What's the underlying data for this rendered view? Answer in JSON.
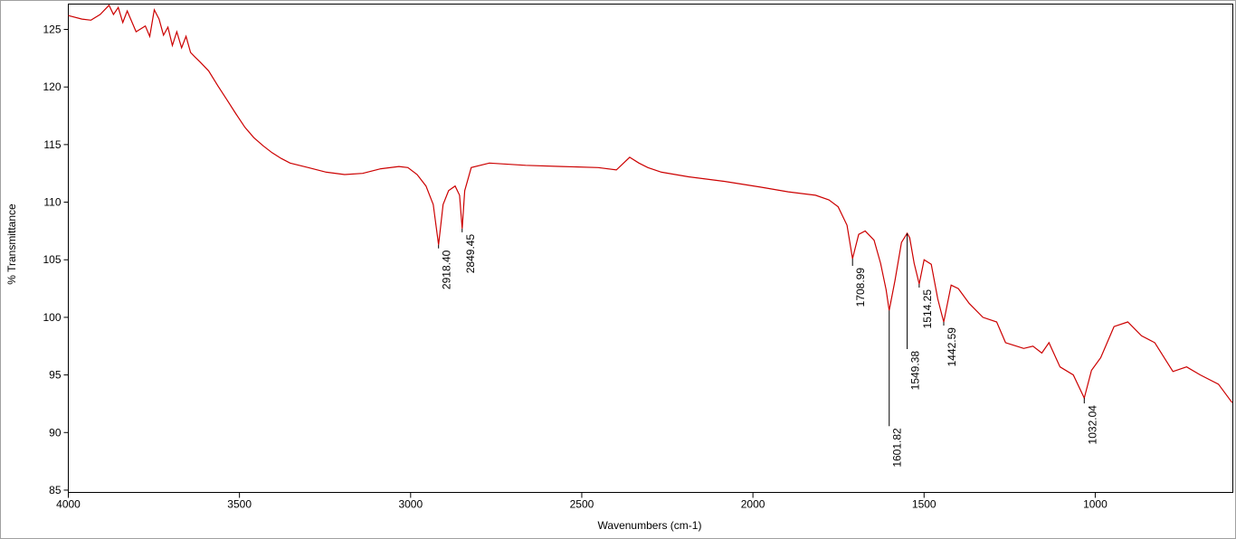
{
  "chart_data": {
    "type": "line",
    "x_label": "Wavenumbers (cm-1)",
    "y_label": "% Transmittance",
    "xlim": [
      4000,
      598
    ],
    "ylim": [
      84.8,
      127.2
    ],
    "xticks": [
      4000,
      3500,
      3000,
      2500,
      2000,
      1500,
      1000
    ],
    "yticks": [
      85,
      90,
      95,
      100,
      105,
      110,
      115,
      120,
      125
    ],
    "grid": false,
    "color": "#cc0000",
    "x": [
      4000,
      3960,
      3934,
      3907,
      3881,
      3868,
      3854,
      3841,
      3828,
      3802,
      3775,
      3762,
      3749,
      3735,
      3722,
      3709,
      3696,
      3683,
      3669,
      3656,
      3643,
      3630,
      3616,
      3590,
      3563,
      3537,
      3511,
      3484,
      3458,
      3431,
      3405,
      3378,
      3352,
      3299,
      3246,
      3193,
      3140,
      3087,
      3034,
      3008,
      2981,
      2955,
      2934,
      2918.4,
      2905,
      2889,
      2870,
      2857,
      2849.45,
      2842,
      2823,
      2770,
      2664,
      2558,
      2452,
      2399,
      2360,
      2333,
      2307,
      2267,
      2188,
      2082,
      1976,
      1897,
      1817,
      1778,
      1751,
      1725,
      1708.99,
      1691,
      1672,
      1646,
      1627,
      1611,
      1601.82,
      1585,
      1566,
      1549.38,
      1542,
      1529,
      1514.25,
      1500,
      1479,
      1460,
      1447,
      1442.59,
      1421,
      1400,
      1368,
      1328,
      1288,
      1262,
      1209,
      1182,
      1156,
      1135,
      1103,
      1064,
      1032.04,
      1011,
      984,
      945,
      905,
      865,
      826,
      773,
      733,
      693,
      640,
      600
    ],
    "values": [
      126.2,
      125.9,
      125.8,
      126.3,
      127.1,
      126.3,
      126.9,
      125.6,
      126.6,
      124.8,
      125.3,
      124.4,
      126.7,
      125.9,
      124.5,
      125.2,
      123.6,
      124.8,
      123.4,
      124.4,
      123.0,
      122.6,
      122.2,
      121.4,
      120.1,
      118.9,
      117.7,
      116.5,
      115.6,
      114.9,
      114.3,
      113.8,
      113.4,
      113.0,
      112.6,
      112.4,
      112.5,
      112.9,
      113.1,
      113.0,
      112.4,
      111.4,
      109.8,
      106.3,
      109.8,
      111.0,
      111.4,
      110.6,
      107.7,
      111.0,
      113.0,
      113.4,
      113.2,
      113.1,
      113.0,
      112.8,
      113.9,
      113.4,
      113.0,
      112.6,
      112.2,
      111.8,
      111.3,
      110.9,
      110.6,
      110.2,
      109.6,
      108.0,
      105.1,
      107.2,
      107.5,
      106.7,
      104.7,
      102.4,
      100.6,
      103.2,
      106.5,
      107.3,
      106.9,
      104.7,
      102.9,
      105.0,
      104.6,
      101.6,
      100.1,
      99.6,
      102.8,
      102.5,
      101.2,
      100.0,
      99.6,
      97.8,
      97.3,
      97.5,
      96.9,
      97.8,
      95.7,
      95.0,
      93.0,
      95.4,
      96.5,
      99.2,
      99.6,
      98.4,
      97.8,
      95.3,
      95.7,
      95.0,
      94.2,
      92.6
    ],
    "annotations": [
      {
        "x": 2918.4,
        "label": "2918.40"
      },
      {
        "x": 2849.45,
        "label": "2849.45"
      },
      {
        "x": 1708.99,
        "label": "1708.99"
      },
      {
        "x": 1601.82,
        "label": "1601.82"
      },
      {
        "x": 1549.38,
        "label": "1549.38"
      },
      {
        "x": 1514.25,
        "label": "1514.25"
      },
      {
        "x": 1442.59,
        "label": "1442.59"
      },
      {
        "x": 1032.04,
        "label": "1032.04"
      }
    ]
  }
}
